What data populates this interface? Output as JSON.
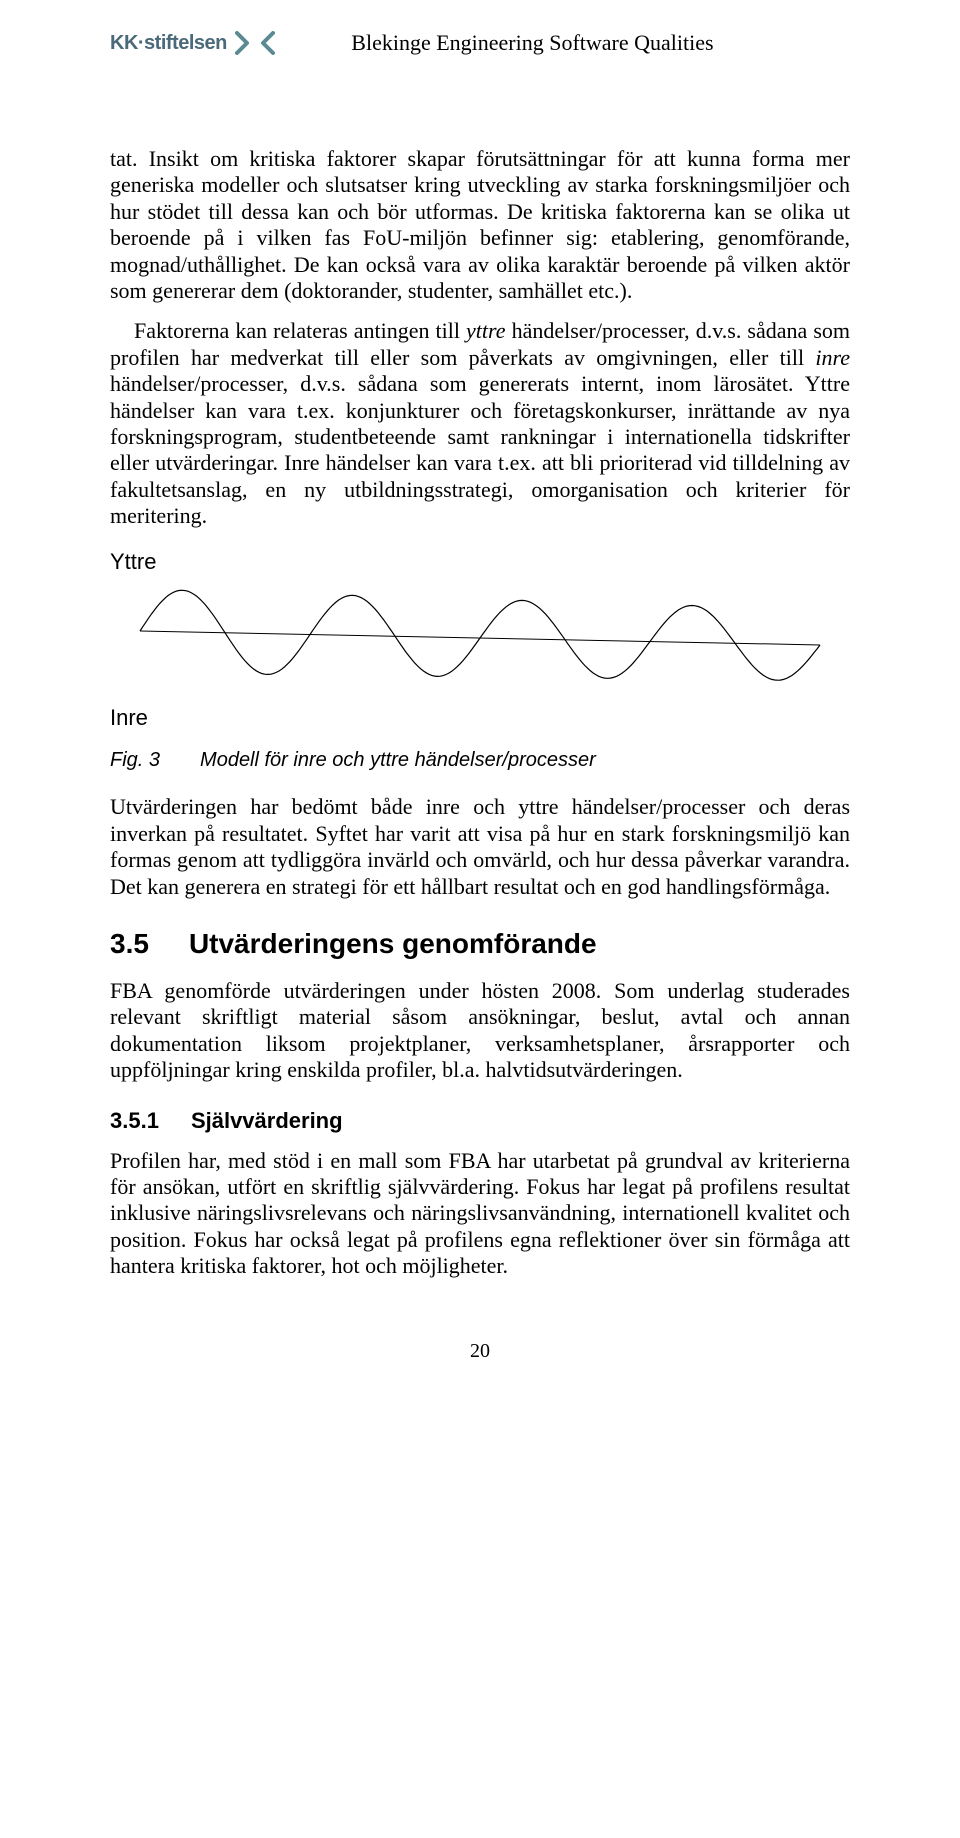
{
  "header": {
    "logo_text": "KK·stiftelsen",
    "title": "Blekinge Engineering Software Qualities",
    "logo_icon_colors": {
      "fill": "#5b8a92"
    }
  },
  "paragraphs": {
    "p1a": "tat. Insikt om kritiska faktorer skapar förutsättningar för att kunna forma mer generiska modeller och slutsatser kring utveckling av starka forskningsmiljöer och hur stödet till dessa kan och bör utformas. De kritiska faktorerna kan se olika ut beroende på i vilken fas FoU-miljön befinner sig: etablering, genomförande, mognad/uthållighet. De kan också vara av olika karaktär beroende på vilken aktör som genererar dem (doktorander, studenter, samhället etc.).",
    "p1b_pre": "Faktorerna kan relateras antingen till ",
    "p1b_it1": "yttre",
    "p1b_mid1": " händelser/processer, d.v.s. sådana som profilen har medverkat till eller som påverkats av omgivningen, eller till ",
    "p1b_it2": "inre",
    "p1b_mid2": " händelser/processer, d.v.s. sådana som genererats internt, inom lärosätet. Yttre händelser kan vara t.ex. konjunkturer och företagskonkurser, inrättande av nya forskningsprogram, studentbeteende samt rankningar i internationella tidskrifter eller utvärderingar. Inre händelser kan vara t.ex. att bli prioriterad vid tilldelning av fakultetsanslag, en ny utbildningsstrategi, omorganisation och kriterier för meritering.",
    "p2": "Utvärderingen har bedömt både inre och yttre händelser/processer och deras inverkan på resultatet. Syftet har varit att visa på hur en stark forskningsmiljö kan formas genom att tydliggöra invärld och omvärld, och hur dessa påverkar varandra. Det kan generera en strategi för ett hållbart resultat och en god handlingsförmåga.",
    "p3": "FBA genomförde utvärderingen under hösten 2008. Som underlag studerades relevant skriftligt material såsom ansökningar, beslut, avtal och annan dokumentation liksom projektplaner, verksamhetsplaner, årsrapporter och uppföljningar kring enskilda profiler, bl.a. halvtidsutvärderingen.",
    "p4": "Profilen har, med stöd i en mall som FBA har utarbetat på grundval av kriterierna för ansökan, utfört en skriftlig självvärdering. Fokus har legat på profilens resultat inklusive näringslivsrelevans och näringslivsanvändning, internationell kvalitet och position. Fokus har också legat på profilens egna reflektioner över sin förmåga att hantera kritiska faktorer, hot och möjligheter."
  },
  "wave": {
    "label_top": "Yttre",
    "label_bottom": "Inre",
    "stroke_color": "#000000",
    "stroke_width": 1.2
  },
  "figure": {
    "num": "Fig. 3",
    "caption": "Modell för inre och yttre händelser/processer"
  },
  "sections": {
    "s35_num": "3.5",
    "s35_title": "Utvärderingens genomförande",
    "s351_num": "3.5.1",
    "s351_title": "Självvärdering"
  },
  "page_number": "20"
}
